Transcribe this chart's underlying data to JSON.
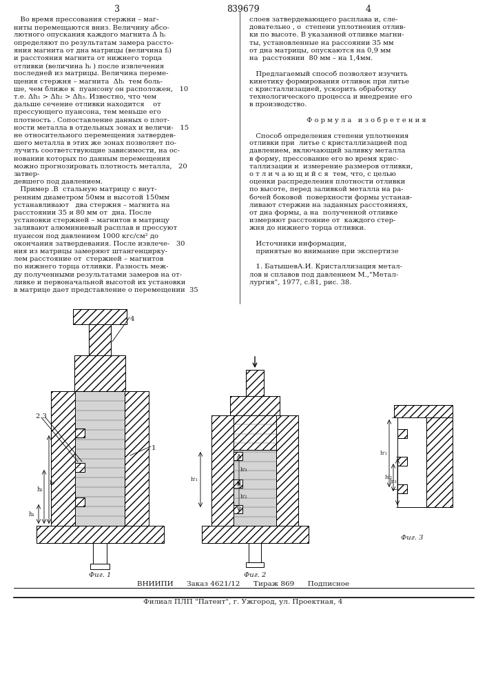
{
  "title_number": "839679",
  "page_left": "3",
  "page_right": "4",
  "bg_color": "#ffffff",
  "text_color": "#1a1a1a",
  "font_size_body": 7.2,
  "font_size_small": 6.0,
  "font_size_header": 9,
  "col1_lines": [
    "   Во время прессования стержни – маг-",
    "ниты перемещаются вниз. Величину абсо-",
    "лютного опускания каждого магнита Δ hᵢ",
    "определяют по результатам замера рассто-",
    "яния магнита от дна матрицы (величина fᵢ)",
    "и расстояния магнита от нижнего торца",
    "отливки (величина hᵢ ) после извлечения",
    "последней из матрицы. Величина переме-",
    "щения стержня – магнита  Δhᵢ  тем боль-",
    "ше, чем ближе к  пуансону он расположен,   10",
    "т.е. Δh₁ > Δh₂ > Δh₃. Известно, что чем",
    "дальше сечение отливки находится    от",
    "прессующего пуансона, тем меньше его",
    "плотность . Сопоставление данных о плот-",
    "ности металла в отдельных зонах и величи-   15",
    "не относительного перемещения затвердев-",
    "шего металла в этих же зонах позволяет по-",
    "лучить соответствующие зависимости, на ос-",
    "новании которых по данным перемещения",
    "можно прогнозировать плотность металла,   20",
    "затвер-",
    "девшего под давлением.",
    "   Пример .В  стальную матрицу с внут-",
    "ренним диаметром 50мм и высотой 150мм",
    "устанавливают   два стержня – магнита на",
    "расстоянии 35 и 80 мм от  дна. После",
    "установки стержней – магнитов в матрицу",
    "заливают алюминиевый расплав и прессуют",
    "пуансон под давлением 1000 кгс/см² до",
    "окончания затвердевания. После извлече-   30",
    "ния из матрицы замеряют штангенцирку-",
    "лем расстояние от  стержней – магнитов",
    "по нижнего торца отливки. Разность меж-",
    "ду полученными результатами замеров на от-",
    "ливке и первоначальной высотой их установки",
    "в матрице дает представление о перемещении  35"
  ],
  "col2_lines": [
    "слоев затвердевающего расплава и, сле-",
    "довательно , о  степени уплотнения отлив-",
    "ки по высоте. В указанной отливке магни-",
    "ты, установленные на рассоянии 35 мм",
    "от дна матрицы, опускаются на 0,9 мм",
    "на  расстоянии  80 мм – на 1,4мм.",
    "",
    "   Предлагаемый способ позволяет изучить",
    "кинетику формирования отливок при литье",
    "с кристаллизацией, ускорить обработку",
    "технологического процесса и внедрение его",
    "в производство.",
    "",
    "Ф о р м у л а   и з о б р е т е н и я",
    "",
    "   Способ определения степени уплотнения",
    "отливки при  литье с кристаллизацией под",
    "давлением, включающий заливку металла",
    "в форму, прессование его во время крис-",
    "таллизации и  измерение размеров отливки,",
    "о т л и ч а ю щ и й с я  тем, что, с целью",
    "оценки распределения плотности отливки",
    "по высоте, перед заливкой металла на ра-",
    "бочей боковой  поверхности формы устанав-",
    "ливают стержни на заданных расстояниях,",
    "от дна формы, а на  полученной отливке",
    "измеряют расстояние от  каждого стер-",
    "жня до нижнего торца отливки.",
    "",
    "   Источники информации,",
    "   принятые во внимание при экспертизе",
    "",
    "   1. БатышевА.И. Кристаллизация метал-",
    "лов и сплавов под давлением М.,\"Метал-",
    "лургия\", 1977, с.81, рис. 38."
  ],
  "fig1_caption": "Фиг. 1",
  "fig2_caption": "Фиг. 2",
  "fig3_caption": "Фиг. 3",
  "footer_main": "ВНИИПИ      Заказ 4621/12      Тираж 869      Подписное",
  "footer_sub": "Филиал ПЛП \"Патент\", г. Ужгород, ул. Проектная, 4"
}
